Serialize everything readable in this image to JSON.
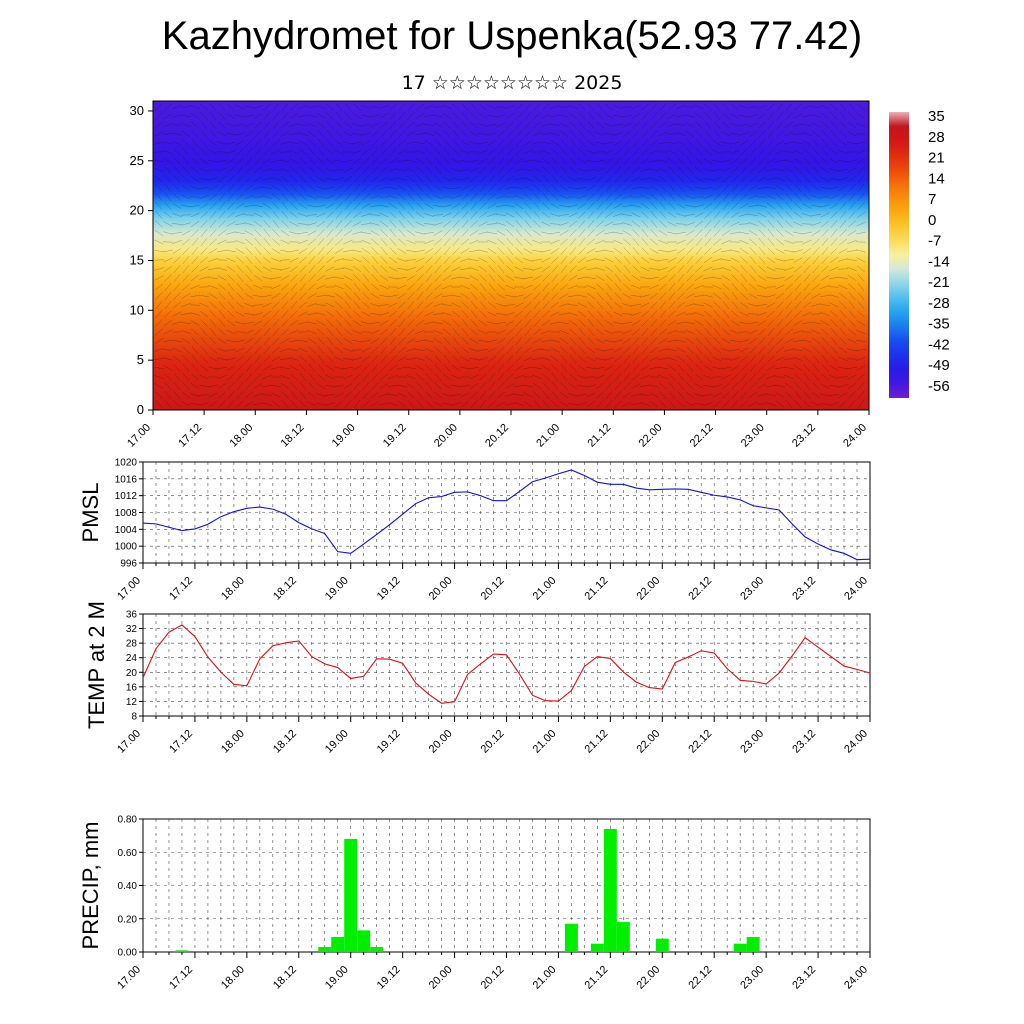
{
  "title": "Kazhydromet for Uspenka(52.93 77.42)",
  "subtitle": "17 ☆☆☆☆☆☆☆☆ 2025",
  "x_tick_labels": [
    "17.00",
    "17.12",
    "18.00",
    "18.12",
    "19.00",
    "19.12",
    "20.00",
    "20.12",
    "21.00",
    "21.12",
    "22.00",
    "22.12",
    "23.00",
    "23.12",
    "24.00"
  ],
  "colors": {
    "pmsl_line": "#1010dd",
    "temp_line": "#dd1010",
    "precip_bar": "#00ee00",
    "grid": "#000000"
  },
  "chart_data": [
    {
      "type": "heatmap",
      "name": "cross-section",
      "ylim": [
        0,
        31
      ],
      "y_ticks": [
        0,
        5,
        10,
        15,
        20,
        25,
        30
      ],
      "colorbar_ticks": [
        "35",
        "28",
        "21",
        "14",
        "7",
        "0",
        "-7",
        "-14",
        "-21",
        "-28",
        "-35",
        "-42",
        "-49",
        "-56"
      ],
      "colorbar_range": [
        -60,
        38
      ],
      "color_stops": [
        {
          "v": -60,
          "c": "#6a1fd6"
        },
        {
          "v": -52,
          "c": "#2a14e8"
        },
        {
          "v": -42,
          "c": "#1840f0"
        },
        {
          "v": -32,
          "c": "#1a9af0"
        },
        {
          "v": -24,
          "c": "#60c8ee"
        },
        {
          "v": -17,
          "c": "#c8e6e4"
        },
        {
          "v": -11,
          "c": "#f8f0a0"
        },
        {
          "v": -4,
          "c": "#fcd440"
        },
        {
          "v": 4,
          "c": "#fbaa10"
        },
        {
          "v": 12,
          "c": "#f57a08"
        },
        {
          "v": 20,
          "c": "#ea3c0c"
        },
        {
          "v": 28,
          "c": "#d41616"
        },
        {
          "v": 35,
          "c": "#b8181e"
        },
        {
          "v": 38,
          "c": "#eab0b4"
        }
      ]
    },
    {
      "type": "line",
      "name": "PMSL",
      "ylabel": "PMSL",
      "ylim": [
        996,
        1020
      ],
      "y_ticks": [
        "996",
        "1000",
        "1004",
        "1008",
        "1012",
        "1016",
        "1020"
      ],
      "x": [
        0,
        3,
        6,
        9,
        12,
        15,
        18,
        21,
        24,
        27,
        30,
        33,
        36,
        39,
        42,
        45,
        48,
        51,
        54,
        57,
        60,
        63,
        66,
        69,
        72,
        75,
        78,
        81,
        84,
        87,
        90,
        93,
        96,
        99,
        102,
        105,
        108,
        111,
        114,
        117,
        120,
        123,
        126,
        129,
        132,
        135,
        138,
        141,
        144,
        147,
        150,
        153,
        156,
        159,
        162,
        165,
        168
      ],
      "values": [
        1005.5,
        1005.3,
        1004.5,
        1003.7,
        1004.1,
        1005.2,
        1007.0,
        1008.2,
        1009.0,
        1009.3,
        1008.8,
        1007.6,
        1005.6,
        1004.1,
        1003.0,
        998.7,
        998.3,
        1000.5,
        1002.8,
        1005.1,
        1007.6,
        1010.1,
        1011.5,
        1011.8,
        1012.8,
        1012.9,
        1012.0,
        1010.8,
        1010.8,
        1013.0,
        1015.3,
        1016.2,
        1017.2,
        1018.1,
        1016.8,
        1015.2,
        1014.7,
        1014.7,
        1013.8,
        1013.4,
        1013.5,
        1013.6,
        1013.5,
        1012.8,
        1012.1,
        1011.7,
        1011.0,
        1009.6,
        1009.1,
        1008.6,
        1005.3,
        1002.2,
        1000.5,
        999.1,
        998.3,
        996.8,
        996.9
      ]
    },
    {
      "type": "line",
      "name": "TEMP at 2 M",
      "ylabel": "TEMP at 2 M",
      "ylim": [
        8,
        36
      ],
      "y_ticks": [
        "8",
        "12",
        "16",
        "20",
        "24",
        "28",
        "32",
        "36"
      ],
      "x": [
        0,
        3,
        6,
        9,
        12,
        15,
        18,
        21,
        24,
        27,
        30,
        33,
        36,
        39,
        42,
        45,
        48,
        51,
        54,
        57,
        60,
        63,
        66,
        69,
        72,
        75,
        78,
        81,
        84,
        87,
        90,
        93,
        96,
        99,
        102,
        105,
        108,
        111,
        114,
        117,
        120,
        123,
        126,
        129,
        132,
        135,
        138,
        141,
        144,
        147,
        150,
        153,
        156,
        159,
        162,
        165,
        168
      ],
      "values": [
        18.5,
        26.5,
        31.0,
        33.0,
        29.8,
        24.2,
        20.0,
        16.7,
        16.3,
        23.7,
        27.3,
        28.1,
        28.6,
        24.3,
        22.3,
        21.3,
        18.3,
        18.9,
        23.7,
        23.6,
        22.5,
        17.1,
        14.0,
        11.5,
        11.9,
        19.4,
        22.3,
        25.0,
        24.8,
        19.5,
        13.7,
        12.2,
        12.1,
        15.0,
        21.6,
        24.3,
        23.8,
        20.1,
        17.3,
        15.8,
        15.4,
        22.7,
        24.2,
        25.9,
        25.3,
        21.0,
        17.8,
        17.5,
        16.8,
        19.8,
        24.5,
        29.5,
        26.9,
        24.3,
        21.7,
        20.8,
        19.8
      ]
    },
    {
      "type": "bar",
      "name": "PRECIP",
      "ylabel": "PRECIP, mm",
      "ylim": [
        0,
        0.8
      ],
      "y_ticks": [
        "0.00",
        "0.20",
        "0.40",
        "0.60",
        "0.80"
      ],
      "x": [
        9,
        42,
        45,
        48,
        51,
        54,
        99,
        105,
        108,
        111,
        120,
        138,
        141
      ],
      "values": [
        0.01,
        0.03,
        0.09,
        0.68,
        0.13,
        0.03,
        0.17,
        0.05,
        0.74,
        0.18,
        0.08,
        0.05,
        0.09
      ]
    }
  ]
}
